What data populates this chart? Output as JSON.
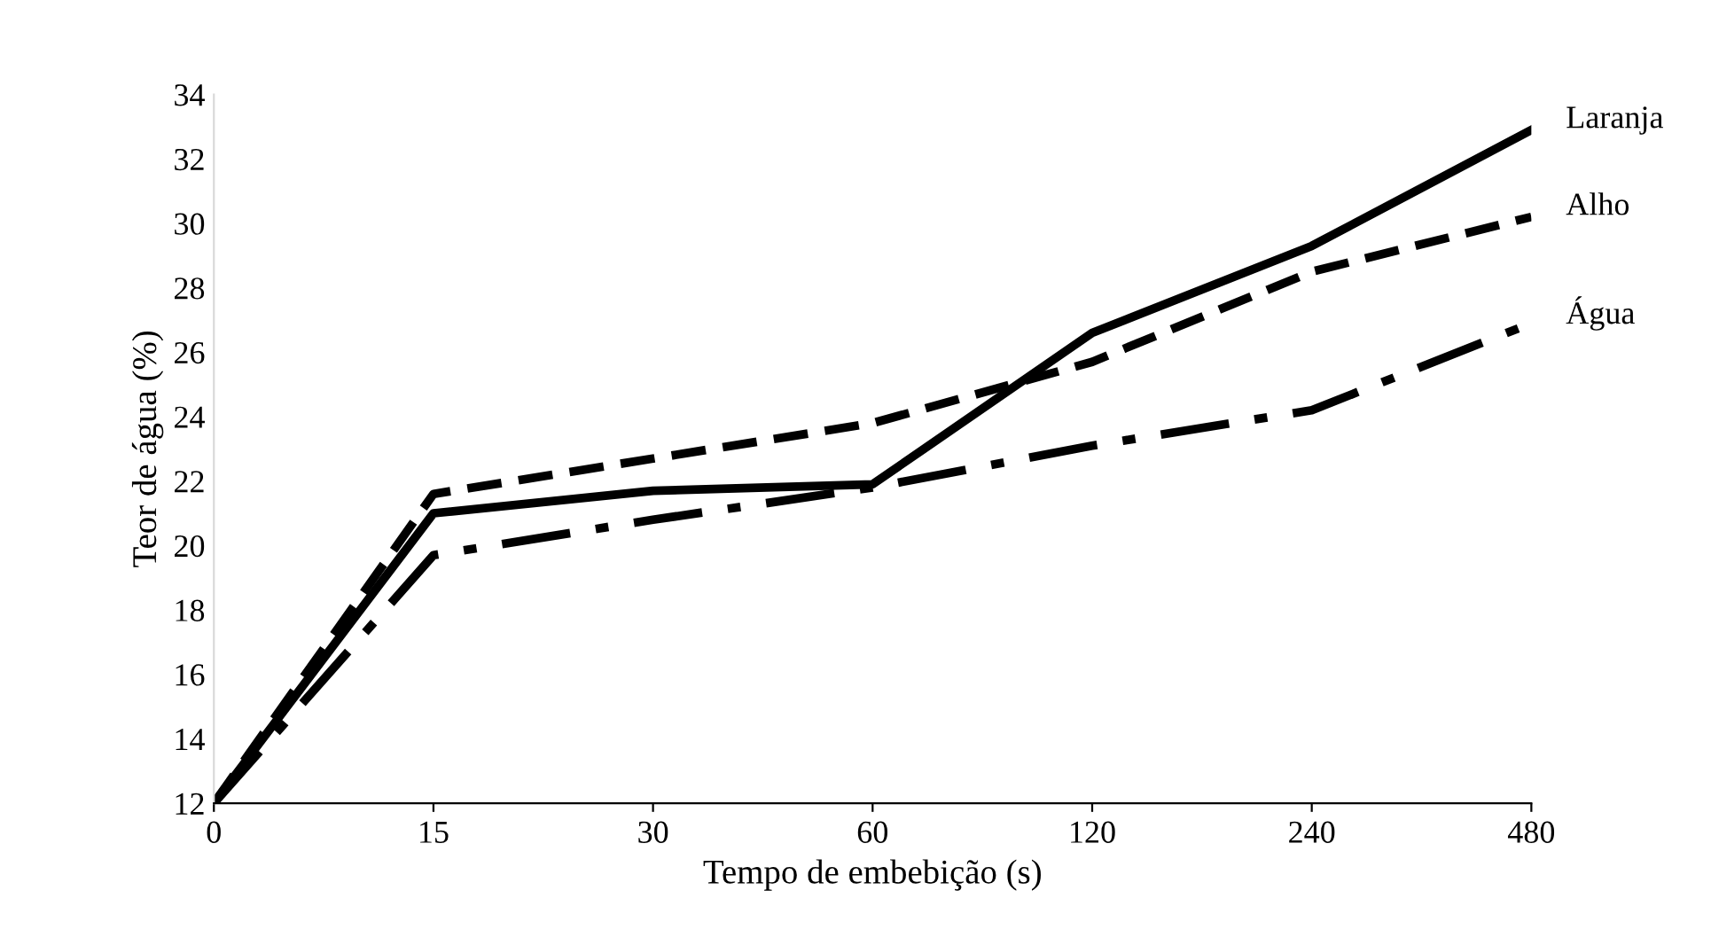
{
  "chart_data": {
    "type": "line",
    "xlabel": "Tempo de embebição (s)",
    "ylabel": "Teor de água (%)",
    "categories": [
      "0",
      "15",
      "30",
      "60",
      "120",
      "240",
      "480"
    ],
    "series": [
      {
        "name": "Laranja",
        "color": "#000000",
        "line_style": "solid",
        "values": [
          12,
          21.0,
          21.7,
          21.9,
          26.6,
          29.3,
          32.9
        ]
      },
      {
        "name": "Alho",
        "color": "#000000",
        "line_style": "dashed",
        "values": [
          12,
          21.6,
          22.7,
          23.8,
          25.7,
          28.5,
          30.2
        ]
      },
      {
        "name": "Água",
        "color": "#000000",
        "line_style": "dashdot",
        "values": [
          12,
          19.7,
          20.8,
          21.8,
          23.1,
          24.2,
          26.9
        ]
      }
    ],
    "ylim": [
      12,
      34
    ],
    "yticks": [
      12,
      14,
      16,
      18,
      20,
      22,
      24,
      26,
      28,
      30,
      32,
      34
    ],
    "grid": false,
    "legend": false,
    "marker": "none"
  }
}
